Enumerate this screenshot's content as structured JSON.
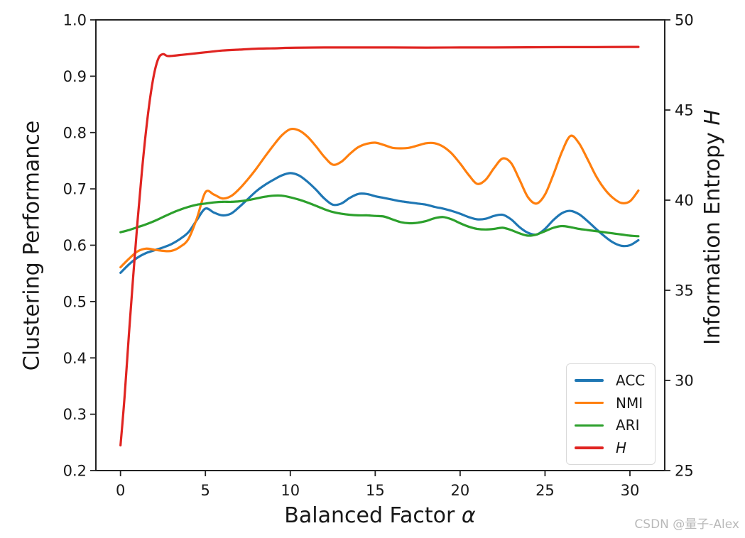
{
  "figure": {
    "watermark": "CSDN @量子-Alex",
    "background": "#ffffff",
    "text_color": "#181818",
    "spine_color": "#222222",
    "watermark_color": "#b9b9b9"
  },
  "chart_data": {
    "type": "line",
    "title": "",
    "xlabel": {
      "text": "Balanced Factor ",
      "math": "α"
    },
    "ylabel_left": "Clustering Performance",
    "ylabel_right": {
      "text": "Information Entropy ",
      "math": "H"
    },
    "x_axis": {
      "lim": [
        -1.45,
        32.05
      ],
      "tick_values": [
        0,
        5,
        10,
        15,
        20,
        25,
        30
      ],
      "tick_labels": [
        "0",
        "5",
        "10",
        "15",
        "20",
        "25",
        "30"
      ]
    },
    "y_axis_left": {
      "lim": [
        0.2,
        1.0
      ],
      "tick_values": [
        0.2,
        0.3,
        0.4,
        0.5,
        0.6,
        0.7,
        0.8,
        0.9,
        1.0
      ],
      "tick_labels": [
        "0.2",
        "0.3",
        "0.4",
        "0.5",
        "0.6",
        "0.7",
        "0.8",
        "0.9",
        "1.0"
      ]
    },
    "y_axis_right": {
      "lim": [
        25,
        50
      ],
      "tick_values": [
        25,
        30,
        35,
        40,
        45,
        50
      ],
      "tick_labels": [
        "25",
        "30",
        "35",
        "40",
        "45",
        "50"
      ]
    },
    "grid": false,
    "legend": {
      "position": "lower-right",
      "entries": [
        {
          "label": "ACC",
          "color": "#1f77b4",
          "italic": false
        },
        {
          "label": "NMI",
          "color": "#ff7f0e",
          "italic": false
        },
        {
          "label": "ARI",
          "color": "#2ca02c",
          "italic": false
        },
        {
          "label": "H",
          "color": "#e02421",
          "italic": true
        }
      ]
    },
    "series": [
      {
        "name": "ACC",
        "color": "#1f77b4",
        "axis": "left",
        "x": [
          0,
          0.5,
          1,
          1.5,
          2,
          2.5,
          3,
          3.5,
          4,
          4.5,
          5,
          5.5,
          6,
          6.5,
          7,
          7.5,
          8,
          8.5,
          9,
          9.5,
          10,
          10.5,
          11,
          11.5,
          12,
          12.5,
          13,
          13.5,
          14,
          14.5,
          15,
          15.5,
          16,
          16.5,
          17,
          17.5,
          18,
          18.5,
          19,
          19.5,
          20,
          20.5,
          21,
          21.5,
          22,
          22.5,
          23,
          23.5,
          24,
          24.5,
          25,
          25.5,
          26,
          26.5,
          27,
          27.5,
          28,
          28.5,
          29,
          29.5,
          30,
          30.5
        ],
        "y": [
          0.551,
          0.566,
          0.578,
          0.586,
          0.591,
          0.596,
          0.602,
          0.611,
          0.623,
          0.645,
          0.665,
          0.658,
          0.653,
          0.656,
          0.668,
          0.682,
          0.696,
          0.707,
          0.716,
          0.724,
          0.728,
          0.724,
          0.713,
          0.699,
          0.683,
          0.672,
          0.674,
          0.684,
          0.691,
          0.691,
          0.687,
          0.684,
          0.681,
          0.678,
          0.676,
          0.674,
          0.672,
          0.668,
          0.665,
          0.661,
          0.656,
          0.65,
          0.646,
          0.647,
          0.652,
          0.654,
          0.646,
          0.632,
          0.622,
          0.619,
          0.629,
          0.645,
          0.657,
          0.661,
          0.655,
          0.643,
          0.629,
          0.616,
          0.605,
          0.599,
          0.6,
          0.609
        ]
      },
      {
        "name": "NMI",
        "color": "#ff7f0e",
        "axis": "left",
        "x": [
          0,
          0.5,
          1,
          1.5,
          2,
          2.5,
          3,
          3.5,
          4,
          4.5,
          5,
          5.5,
          6,
          6.5,
          7,
          7.5,
          8,
          8.5,
          9,
          9.5,
          10,
          10.5,
          11,
          11.5,
          12,
          12.5,
          13,
          13.5,
          14,
          14.5,
          15,
          15.5,
          16,
          16.5,
          17,
          17.5,
          18,
          18.5,
          19,
          19.5,
          20,
          20.5,
          21,
          21.5,
          22,
          22.5,
          23,
          23.5,
          24,
          24.5,
          25,
          25.5,
          26,
          26.5,
          27,
          27.5,
          28,
          28.5,
          29,
          29.5,
          30,
          30.5
        ],
        "y": [
          0.561,
          0.576,
          0.589,
          0.594,
          0.592,
          0.59,
          0.59,
          0.597,
          0.611,
          0.648,
          0.694,
          0.69,
          0.683,
          0.687,
          0.7,
          0.717,
          0.736,
          0.757,
          0.777,
          0.795,
          0.806,
          0.804,
          0.793,
          0.776,
          0.757,
          0.743,
          0.748,
          0.762,
          0.774,
          0.78,
          0.782,
          0.778,
          0.773,
          0.772,
          0.773,
          0.777,
          0.781,
          0.781,
          0.775,
          0.763,
          0.745,
          0.725,
          0.709,
          0.716,
          0.737,
          0.754,
          0.746,
          0.716,
          0.685,
          0.674,
          0.69,
          0.726,
          0.766,
          0.794,
          0.781,
          0.753,
          0.723,
          0.7,
          0.684,
          0.675,
          0.678,
          0.697
        ]
      },
      {
        "name": "ARI",
        "color": "#2ca02c",
        "axis": "left",
        "x": [
          0,
          0.5,
          1,
          1.5,
          2,
          2.5,
          3,
          3.5,
          4,
          4.5,
          5,
          5.5,
          6,
          6.5,
          7,
          7.5,
          8,
          8.5,
          9,
          9.5,
          10,
          10.5,
          11,
          11.5,
          12,
          12.5,
          13,
          13.5,
          14,
          14.5,
          15,
          15.5,
          16,
          16.5,
          17,
          17.5,
          18,
          18.5,
          19,
          19.5,
          20,
          20.5,
          21,
          21.5,
          22,
          22.5,
          23,
          23.5,
          24,
          24.5,
          25,
          25.5,
          26,
          26.5,
          27,
          27.5,
          28,
          28.5,
          29,
          29.5,
          30,
          30.5
        ],
        "y": [
          0.623,
          0.627,
          0.632,
          0.637,
          0.643,
          0.65,
          0.657,
          0.663,
          0.668,
          0.672,
          0.674,
          0.676,
          0.677,
          0.677,
          0.678,
          0.68,
          0.683,
          0.686,
          0.688,
          0.688,
          0.685,
          0.681,
          0.676,
          0.67,
          0.664,
          0.659,
          0.656,
          0.654,
          0.653,
          0.653,
          0.652,
          0.651,
          0.646,
          0.641,
          0.639,
          0.64,
          0.643,
          0.648,
          0.65,
          0.646,
          0.639,
          0.633,
          0.629,
          0.628,
          0.629,
          0.631,
          0.627,
          0.621,
          0.617,
          0.619,
          0.625,
          0.631,
          0.634,
          0.632,
          0.629,
          0.627,
          0.625,
          0.623,
          0.621,
          0.619,
          0.617,
          0.616
        ]
      },
      {
        "name": "H",
        "color": "#e02421",
        "axis": "right",
        "x": [
          0,
          0.25,
          0.5,
          0.75,
          1,
          1.25,
          1.5,
          1.75,
          2,
          2.25,
          2.5,
          2.75,
          3,
          3.5,
          4,
          5,
          6,
          7,
          8,
          9,
          10,
          12,
          14,
          16,
          18,
          20,
          22,
          24,
          26,
          28,
          30,
          30.5
        ],
        "y": [
          26.4,
          29.2,
          32.6,
          35.8,
          38.8,
          41.5,
          43.8,
          45.7,
          47.1,
          47.9,
          48.1,
          48.0,
          48.0,
          48.05,
          48.1,
          48.2,
          48.3,
          48.35,
          48.4,
          48.42,
          48.45,
          48.47,
          48.47,
          48.47,
          48.46,
          48.47,
          48.47,
          48.48,
          48.49,
          48.49,
          48.5,
          48.5
        ]
      }
    ]
  }
}
